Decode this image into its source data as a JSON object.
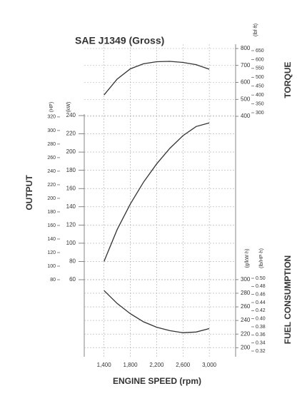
{
  "chart_data": [
    {
      "type": "line",
      "title": "SAE J1349 (Gross)",
      "axis_title": "TORQUE",
      "y2label": "(lbf·ft)",
      "x": [
        1400,
        1600,
        1800,
        2000,
        2200,
        2400,
        2600,
        2800,
        3000
      ],
      "values": [
        526,
        620,
        680,
        710,
        722,
        724,
        718,
        705,
        678
      ],
      "color": "#333333",
      "ylim": [
        400,
        800
      ],
      "yticks": [
        400,
        500,
        600,
        700,
        800
      ],
      "y2lim": [
        280,
        662
      ],
      "y2ticks": [
        300,
        350,
        400,
        450,
        500,
        550,
        600,
        650
      ],
      "grid": true
    },
    {
      "type": "line",
      "axis_title": "OUTPUT",
      "ylabel": "(kW)",
      "y2label": "(HP)",
      "x": [
        1400,
        1600,
        1800,
        2000,
        2200,
        2400,
        2600,
        2800,
        3000
      ],
      "values": [
        80,
        115,
        143,
        167,
        187,
        204,
        218,
        228,
        232
      ],
      "color": "#333333",
      "ylim": [
        60,
        240
      ],
      "yticks": [
        60,
        80,
        100,
        120,
        140,
        160,
        180,
        200,
        220,
        240
      ],
      "y2lim": [
        80,
        322
      ],
      "y2ticks": [
        80,
        100,
        120,
        140,
        160,
        180,
        200,
        220,
        240,
        260,
        280,
        300,
        320
      ],
      "grid": true
    },
    {
      "type": "line",
      "axis_title": "FUEL CONSUMPTION",
      "ylabel": "(g/kW·h)",
      "y2label": "(lb/HP·h)",
      "x": [
        1400,
        1600,
        1800,
        2000,
        2200,
        2400,
        2600,
        2800,
        3000
      ],
      "values": [
        284,
        265,
        250,
        238,
        230,
        225,
        222,
        223,
        228
      ],
      "color": "#333333",
      "ylim": [
        195,
        302
      ],
      "yticks": [
        200,
        220,
        240,
        260,
        280,
        300
      ],
      "y2lim": [
        0.32,
        0.5
      ],
      "y2ticks": [
        0.32,
        0.34,
        0.36,
        0.38,
        {
          "value": 0.4,
          "label": "0.40"
        },
        0.42,
        0.44,
        0.46,
        0.48,
        {
          "value": 0.5,
          "label": "0.50"
        }
      ],
      "xlabel": "ENGINE SPEED (rpm)",
      "xlim": [
        1100,
        3400
      ],
      "xticks": [
        {
          "value": 1400,
          "label": "1,400"
        },
        {
          "value": 1800,
          "label": "1,800"
        },
        {
          "value": 2200,
          "label": "2,200"
        },
        {
          "value": 2600,
          "label": "2,600"
        },
        {
          "value": 3000,
          "label": "3,000"
        }
      ],
      "grid": true
    }
  ]
}
